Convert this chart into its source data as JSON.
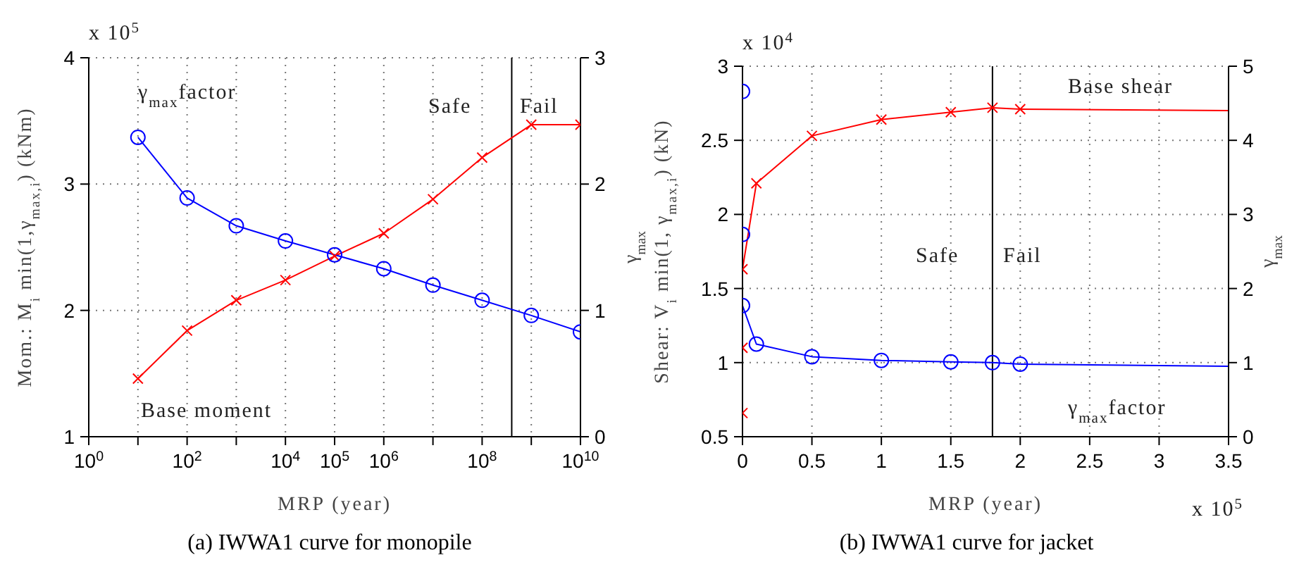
{
  "chart_data": [
    {
      "type": "line",
      "title": "(a) IWWA1 curve for monopile",
      "xlabel": "MRP (year)",
      "ylabel": "Mom.: M$_{i}$ min(1,γ$_{max,i}$) (kNm)",
      "y2label": "γ$_{max}$",
      "log": "x",
      "grid": true,
      "xlim": [
        1,
        10000000000
      ],
      "xticks": [
        {
          "value": 1,
          "label": "10$^{0}$"
        },
        {
          "value": 10,
          "label": null
        },
        {
          "value": 100,
          "label": "10$^{2}$"
        },
        {
          "value": 1000,
          "label": null
        },
        {
          "value": 10000,
          "label": "10$^{4}$"
        },
        {
          "value": 100000,
          "label": "10$^{5}$"
        },
        {
          "value": 1000000,
          "label": "10$^{6}$"
        },
        {
          "value": 10000000,
          "label": null
        },
        {
          "value": 100000000,
          "label": "10$^{8}$"
        },
        {
          "value": 1000000000,
          "label": null
        },
        {
          "value": 10000000000,
          "label": "10$^{10}$"
        }
      ],
      "ylim": [
        1,
        4
      ],
      "yticks": [
        1,
        2,
        3,
        4
      ],
      "y2lim": [
        0,
        3
      ],
      "y2ticks": [
        0,
        1,
        2,
        3
      ],
      "series": [
        {
          "color": "#ff0000",
          "marker": "cross",
          "x": [
            10,
            100,
            1000,
            10000,
            100000,
            1000000,
            10000000,
            100000000,
            1000000000,
            10000000000
          ],
          "values": [
            1.46,
            1.84,
            2.08,
            2.24,
            2.43,
            2.61,
            2.88,
            3.21,
            3.47,
            3.47
          ]
        },
        {
          "color": "#0000ff",
          "marker": "circle",
          "axis": "y2",
          "x": [
            10,
            100,
            1000,
            10000,
            100000,
            1000000,
            10000000,
            100000000,
            1000000000,
            10000000000
          ],
          "values": [
            2.37,
            1.89,
            1.67,
            1.55,
            1.44,
            1.33,
            1.2,
            1.08,
            0.96,
            0.83
          ]
        }
      ],
      "ref_lines": [
        {
          "axis": "x",
          "value": 400000000,
          "color": "#000000"
        }
      ],
      "annotations": [
        "γ$_{max}$factor",
        "Safe",
        "Fail",
        "Base moment",
        "x 10$^{5}$"
      ]
    },
    {
      "type": "line",
      "title": "(b) IWWA1 curve for jacket",
      "xlabel": "MRP (year)",
      "ylabel": "Shear: V$_{i}$ min(1, γ$_{max,i}$) (kN)",
      "y2label": "γ$_{max}$",
      "grid": true,
      "xlim": [
        0,
        3.5
      ],
      "xticks": [
        0,
        0.5,
        1,
        1.5,
        2,
        2.5,
        3,
        3.5
      ],
      "ylim": [
        0.5,
        3
      ],
      "yticks": [
        0.5,
        1,
        1.5,
        2,
        2.5,
        3
      ],
      "y2lim": [
        0,
        5
      ],
      "y2ticks": [
        0,
        1,
        2,
        3,
        4,
        5
      ],
      "series": [
        {
          "color": "#ff0000",
          "marker": "cross",
          "x": [
            0,
            0,
            0,
            0.1,
            0.5,
            1,
            1.5,
            1.8,
            2
          ],
          "values": [
            0.66,
            1.1,
            1.63,
            2.21,
            2.53,
            2.64,
            2.69,
            2.72,
            2.71
          ]
        },
        {
          "color": "#ff0000",
          "marker": "none",
          "x": [
            2,
            3.5
          ],
          "values": [
            2.71,
            2.7
          ]
        },
        {
          "color": "#0000ff",
          "marker": "circle",
          "axis": "y2",
          "x": [
            0,
            0,
            0,
            0.1,
            0.5,
            1,
            1.5,
            1.8,
            2
          ],
          "values": [
            4.66,
            2.73,
            1.77,
            1.25,
            1.08,
            1.03,
            1.01,
            1,
            0.98
          ]
        },
        {
          "color": "#0000ff",
          "marker": "none",
          "axis": "y2",
          "x": [
            2,
            3.5
          ],
          "values": [
            0.98,
            0.95
          ]
        }
      ],
      "ref_lines": [
        {
          "axis": "x",
          "value": 1.8,
          "color": "#000000"
        }
      ],
      "annotations": [
        "Base shear",
        "Safe",
        "Fail",
        "γ$_{max}$factor",
        "x 10$^{4}$",
        "x 10$^{5}$"
      ]
    }
  ]
}
